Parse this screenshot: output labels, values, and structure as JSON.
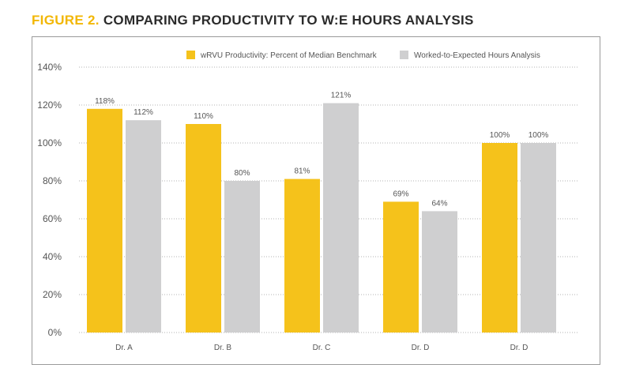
{
  "figure": {
    "number": "FIGURE 2.",
    "title": "COMPARING PRODUCTIVITY TO W:E HOURS ANALYSIS"
  },
  "colors": {
    "title_number": "#f2b705",
    "series_1": "#f5c21b",
    "series_2": "#cfcfd0",
    "grid": "#b3b3b3",
    "text": "#555555"
  },
  "chart_data": {
    "type": "bar",
    "title": "COMPARING PRODUCTIVITY TO W:E HOURS ANALYSIS",
    "categories": [
      "Dr. A",
      "Dr. B",
      "Dr. C",
      "Dr. D",
      "Dr. D"
    ],
    "series": [
      {
        "name": "wRVU Productivity: Percent of Median Benchmark",
        "values": [
          118,
          110,
          81,
          69,
          100
        ],
        "labels": [
          "118%",
          "110%",
          "81%",
          "69%",
          "100%"
        ]
      },
      {
        "name": "Worked-to-Expected Hours Analysis",
        "values": [
          112,
          80,
          121,
          64,
          100
        ],
        "labels": [
          "112%",
          "80%",
          "121%",
          "64%",
          "100%"
        ]
      }
    ],
    "y_ticks": [
      "0%",
      "20%",
      "40%",
      "60%",
      "80%",
      "100%",
      "120%",
      "140%"
    ],
    "ylim": [
      0,
      140
    ],
    "grid": true,
    "legend": "top-right"
  }
}
